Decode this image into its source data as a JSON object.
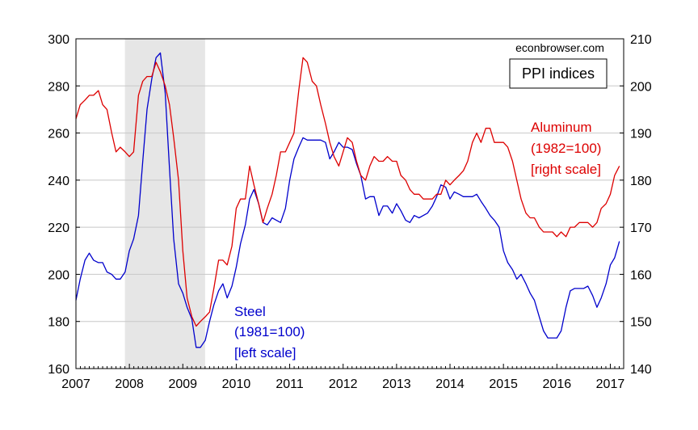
{
  "chart_data": {
    "type": "line",
    "title": "PPI indices",
    "watermark": "econbrowser.com",
    "grid": true,
    "legend": "none",
    "x_ticks": [
      "2007",
      "2008",
      "2009",
      "2010",
      "2011",
      "2012",
      "2013",
      "2014",
      "2015",
      "2016",
      "2017"
    ],
    "xlim": [
      2007.0,
      2017.25
    ],
    "left_axis": {
      "ylim": [
        160,
        300
      ],
      "ticks": [
        "160",
        "180",
        "200",
        "220",
        "240",
        "260",
        "280",
        "300"
      ]
    },
    "right_axis": {
      "ylim": [
        140,
        210
      ],
      "ticks": [
        "140",
        "150",
        "160",
        "170",
        "180",
        "190",
        "200",
        "210"
      ]
    },
    "recession": {
      "start": 2007.917,
      "end": 2009.417,
      "color": "#e6e6e6"
    },
    "series": [
      {
        "name": "Steel",
        "axis": "left",
        "color": "#0000cc",
        "labels": [
          "Steel",
          "(1981=100)",
          "[left scale]"
        ],
        "points": [
          [
            2007.0,
            189
          ],
          [
            2007.08,
            198
          ],
          [
            2007.17,
            206
          ],
          [
            2007.25,
            209
          ],
          [
            2007.33,
            206
          ],
          [
            2007.42,
            205
          ],
          [
            2007.5,
            205
          ],
          [
            2007.58,
            201
          ],
          [
            2007.67,
            200
          ],
          [
            2007.75,
            198
          ],
          [
            2007.83,
            198
          ],
          [
            2007.92,
            201
          ],
          [
            2008.0,
            210
          ],
          [
            2008.08,
            215
          ],
          [
            2008.17,
            225
          ],
          [
            2008.25,
            248
          ],
          [
            2008.33,
            270
          ],
          [
            2008.42,
            283
          ],
          [
            2008.5,
            292
          ],
          [
            2008.58,
            294
          ],
          [
            2008.67,
            277
          ],
          [
            2008.75,
            245
          ],
          [
            2008.83,
            215
          ],
          [
            2008.92,
            196
          ],
          [
            2009.0,
            192
          ],
          [
            2009.08,
            186
          ],
          [
            2009.17,
            181
          ],
          [
            2009.25,
            169
          ],
          [
            2009.33,
            169
          ],
          [
            2009.42,
            172
          ],
          [
            2009.5,
            180
          ],
          [
            2009.58,
            187
          ],
          [
            2009.67,
            193
          ],
          [
            2009.75,
            196
          ],
          [
            2009.83,
            190
          ],
          [
            2009.92,
            195
          ],
          [
            2010.0,
            203
          ],
          [
            2010.08,
            213
          ],
          [
            2010.17,
            221
          ],
          [
            2010.25,
            232
          ],
          [
            2010.33,
            236
          ],
          [
            2010.42,
            230
          ],
          [
            2010.5,
            222
          ],
          [
            2010.58,
            221
          ],
          [
            2010.67,
            224
          ],
          [
            2010.75,
            223
          ],
          [
            2010.83,
            222
          ],
          [
            2010.92,
            228
          ],
          [
            2011.0,
            240
          ],
          [
            2011.08,
            249
          ],
          [
            2011.17,
            254
          ],
          [
            2011.25,
            258
          ],
          [
            2011.33,
            257
          ],
          [
            2011.42,
            257
          ],
          [
            2011.5,
            257
          ],
          [
            2011.58,
            257
          ],
          [
            2011.67,
            256
          ],
          [
            2011.75,
            249
          ],
          [
            2011.83,
            252
          ],
          [
            2011.92,
            256
          ],
          [
            2012.0,
            254
          ],
          [
            2012.08,
            254
          ],
          [
            2012.17,
            253
          ],
          [
            2012.25,
            247
          ],
          [
            2012.33,
            242
          ],
          [
            2012.42,
            232
          ],
          [
            2012.5,
            233
          ],
          [
            2012.58,
            233
          ],
          [
            2012.67,
            225
          ],
          [
            2012.75,
            229
          ],
          [
            2012.83,
            229
          ],
          [
            2012.92,
            226
          ],
          [
            2013.0,
            230
          ],
          [
            2013.08,
            227
          ],
          [
            2013.17,
            223
          ],
          [
            2013.25,
            222
          ],
          [
            2013.33,
            225
          ],
          [
            2013.42,
            224
          ],
          [
            2013.5,
            225
          ],
          [
            2013.58,
            226
          ],
          [
            2013.67,
            229
          ],
          [
            2013.75,
            233
          ],
          [
            2013.83,
            238
          ],
          [
            2013.92,
            237
          ],
          [
            2014.0,
            232
          ],
          [
            2014.08,
            235
          ],
          [
            2014.17,
            234
          ],
          [
            2014.25,
            233
          ],
          [
            2014.33,
            233
          ],
          [
            2014.42,
            233
          ],
          [
            2014.5,
            234
          ],
          [
            2014.58,
            231
          ],
          [
            2014.67,
            228
          ],
          [
            2014.75,
            225
          ],
          [
            2014.83,
            223
          ],
          [
            2014.92,
            220
          ],
          [
            2015.0,
            210
          ],
          [
            2015.08,
            205
          ],
          [
            2015.17,
            202
          ],
          [
            2015.25,
            198
          ],
          [
            2015.33,
            200
          ],
          [
            2015.42,
            196
          ],
          [
            2015.5,
            192
          ],
          [
            2015.58,
            189
          ],
          [
            2015.67,
            182
          ],
          [
            2015.75,
            176
          ],
          [
            2015.83,
            173
          ],
          [
            2015.92,
            173
          ],
          [
            2016.0,
            173
          ],
          [
            2016.08,
            176
          ],
          [
            2016.17,
            186
          ],
          [
            2016.25,
            193
          ],
          [
            2016.33,
            194
          ],
          [
            2016.42,
            194
          ],
          [
            2016.5,
            194
          ],
          [
            2016.58,
            195
          ],
          [
            2016.67,
            191
          ],
          [
            2016.75,
            186
          ],
          [
            2016.83,
            190
          ],
          [
            2016.92,
            196
          ],
          [
            2017.0,
            204
          ],
          [
            2017.08,
            207
          ],
          [
            2017.17,
            214
          ]
        ]
      },
      {
        "name": "Aluminum",
        "axis": "right",
        "color": "#dd0000",
        "labels": [
          "Aluminum",
          "(1982=100)",
          "[right scale]"
        ],
        "points": [
          [
            2007.0,
            193
          ],
          [
            2007.08,
            196
          ],
          [
            2007.17,
            197
          ],
          [
            2007.25,
            198
          ],
          [
            2007.33,
            198
          ],
          [
            2007.42,
            199
          ],
          [
            2007.5,
            196
          ],
          [
            2007.58,
            195
          ],
          [
            2007.67,
            190
          ],
          [
            2007.75,
            186
          ],
          [
            2007.83,
            187
          ],
          [
            2007.92,
            186
          ],
          [
            2008.0,
            185
          ],
          [
            2008.08,
            186
          ],
          [
            2008.17,
            198
          ],
          [
            2008.25,
            201
          ],
          [
            2008.33,
            202
          ],
          [
            2008.42,
            202
          ],
          [
            2008.5,
            205
          ],
          [
            2008.58,
            203
          ],
          [
            2008.67,
            200
          ],
          [
            2008.75,
            196
          ],
          [
            2008.83,
            189
          ],
          [
            2008.92,
            180
          ],
          [
            2009.0,
            165
          ],
          [
            2009.08,
            155
          ],
          [
            2009.17,
            151
          ],
          [
            2009.25,
            149
          ],
          [
            2009.33,
            150
          ],
          [
            2009.42,
            151
          ],
          [
            2009.5,
            152
          ],
          [
            2009.58,
            157
          ],
          [
            2009.67,
            163
          ],
          [
            2009.75,
            163
          ],
          [
            2009.83,
            162
          ],
          [
            2009.92,
            166
          ],
          [
            2010.0,
            174
          ],
          [
            2010.08,
            176
          ],
          [
            2010.17,
            176
          ],
          [
            2010.25,
            183
          ],
          [
            2010.33,
            179
          ],
          [
            2010.42,
            175
          ],
          [
            2010.5,
            171
          ],
          [
            2010.58,
            174
          ],
          [
            2010.67,
            177
          ],
          [
            2010.75,
            181
          ],
          [
            2010.83,
            186
          ],
          [
            2010.92,
            186
          ],
          [
            2011.0,
            188
          ],
          [
            2011.08,
            190
          ],
          [
            2011.17,
            199
          ],
          [
            2011.25,
            206
          ],
          [
            2011.33,
            205
          ],
          [
            2011.42,
            201
          ],
          [
            2011.5,
            200
          ],
          [
            2011.58,
            196
          ],
          [
            2011.67,
            192
          ],
          [
            2011.75,
            188
          ],
          [
            2011.83,
            185
          ],
          [
            2011.92,
            183
          ],
          [
            2012.0,
            186
          ],
          [
            2012.08,
            189
          ],
          [
            2012.17,
            188
          ],
          [
            2012.25,
            184
          ],
          [
            2012.33,
            181
          ],
          [
            2012.42,
            180
          ],
          [
            2012.5,
            183
          ],
          [
            2012.58,
            185
          ],
          [
            2012.67,
            184
          ],
          [
            2012.75,
            184
          ],
          [
            2012.83,
            185
          ],
          [
            2012.92,
            184
          ],
          [
            2013.0,
            184
          ],
          [
            2013.08,
            181
          ],
          [
            2013.17,
            180
          ],
          [
            2013.25,
            178
          ],
          [
            2013.33,
            177
          ],
          [
            2013.42,
            177
          ],
          [
            2013.5,
            176
          ],
          [
            2013.58,
            176
          ],
          [
            2013.67,
            176
          ],
          [
            2013.75,
            177
          ],
          [
            2013.83,
            177
          ],
          [
            2013.92,
            180
          ],
          [
            2014.0,
            179
          ],
          [
            2014.08,
            180
          ],
          [
            2014.17,
            181
          ],
          [
            2014.25,
            182
          ],
          [
            2014.33,
            184
          ],
          [
            2014.42,
            188
          ],
          [
            2014.5,
            190
          ],
          [
            2014.58,
            188
          ],
          [
            2014.67,
            191
          ],
          [
            2014.75,
            191
          ],
          [
            2014.83,
            188
          ],
          [
            2014.92,
            188
          ],
          [
            2015.0,
            188
          ],
          [
            2015.08,
            187
          ],
          [
            2015.17,
            184
          ],
          [
            2015.25,
            180
          ],
          [
            2015.33,
            176
          ],
          [
            2015.42,
            173
          ],
          [
            2015.5,
            172
          ],
          [
            2015.58,
            172
          ],
          [
            2015.67,
            170
          ],
          [
            2015.75,
            169
          ],
          [
            2015.83,
            169
          ],
          [
            2015.92,
            169
          ],
          [
            2016.0,
            168
          ],
          [
            2016.08,
            169
          ],
          [
            2016.17,
            168
          ],
          [
            2016.25,
            170
          ],
          [
            2016.33,
            170
          ],
          [
            2016.42,
            171
          ],
          [
            2016.5,
            171
          ],
          [
            2016.58,
            171
          ],
          [
            2016.67,
            170
          ],
          [
            2016.75,
            171
          ],
          [
            2016.83,
            174
          ],
          [
            2016.92,
            175
          ],
          [
            2017.0,
            177
          ],
          [
            2017.08,
            181
          ],
          [
            2017.17,
            183
          ]
        ]
      }
    ]
  }
}
